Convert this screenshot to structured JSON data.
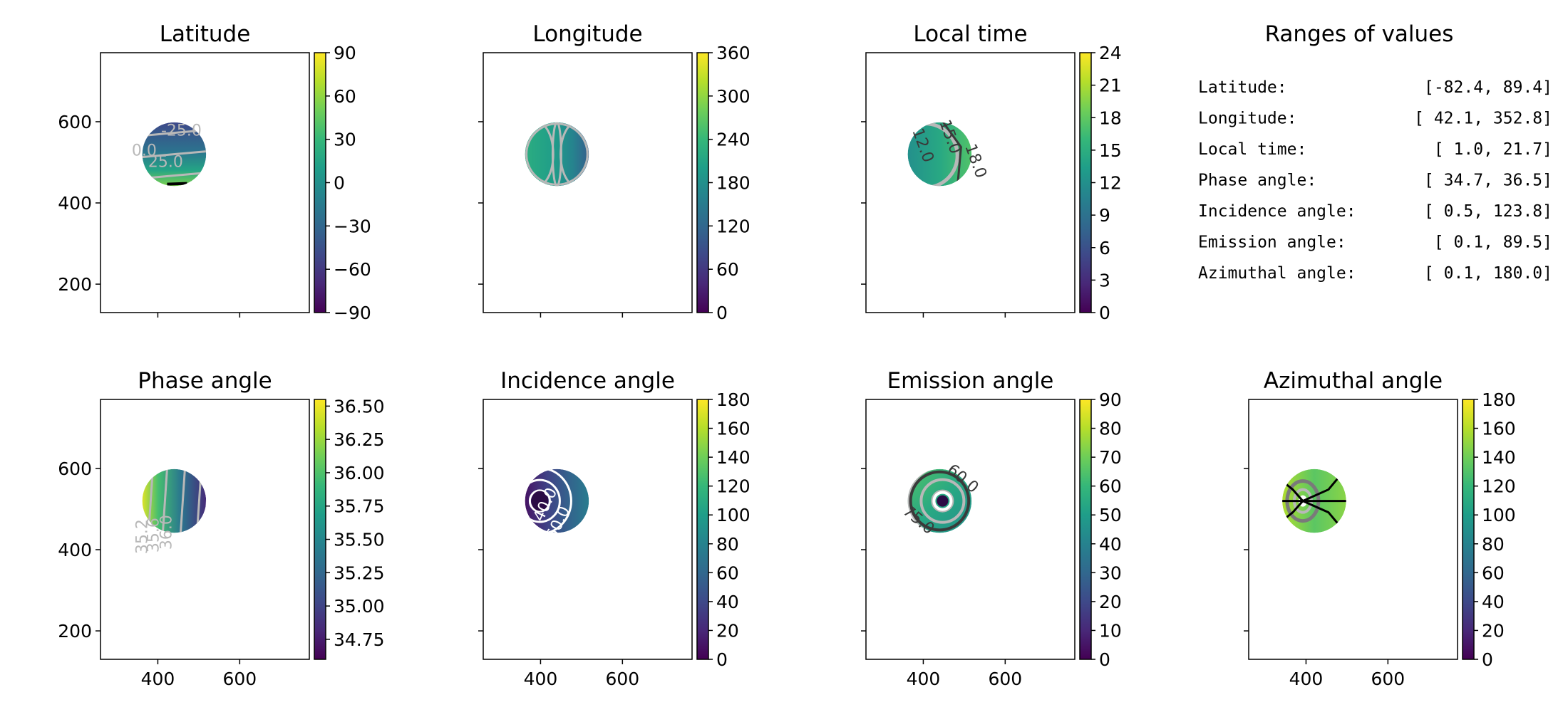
{
  "chart_data": [
    {
      "type": "heatmap",
      "title": "Latitude",
      "xlim": [
        260,
        770
      ],
      "ylim": [
        130,
        770
      ],
      "xticks": [
        400,
        600
      ],
      "yticks": [
        200,
        400,
        600
      ],
      "show_xticklabels": false,
      "show_yticklabels": true,
      "disc": {
        "cx": 440,
        "cy": 520,
        "r": 78
      },
      "color_variable": "latitude",
      "colorbar": {
        "range": [
          -90,
          90
        ],
        "ticks": [
          "90",
          "60",
          "30",
          "0",
          "−30",
          "−60",
          "−90"
        ],
        "tick_values": [
          90,
          60,
          30,
          0,
          -30,
          -60,
          -90
        ]
      },
      "contour_labels": [
        "-25.0",
        "0.0",
        "25.0"
      ]
    },
    {
      "type": "heatmap",
      "title": "Longitude",
      "xlim": [
        260,
        770
      ],
      "ylim": [
        130,
        770
      ],
      "xticks": [
        400,
        600
      ],
      "yticks": [
        200,
        400,
        600
      ],
      "show_xticklabels": false,
      "show_yticklabels": false,
      "disc": {
        "cx": 440,
        "cy": 520,
        "r": 78
      },
      "color_variable": "longitude",
      "colorbar": {
        "range": [
          0,
          360
        ],
        "ticks": [
          "360",
          "300",
          "240",
          "180",
          "120",
          "60",
          "0"
        ],
        "tick_values": [
          360,
          300,
          240,
          180,
          120,
          60,
          0
        ]
      },
      "contour_labels": []
    },
    {
      "type": "heatmap",
      "title": "Local time",
      "xlim": [
        260,
        770
      ],
      "ylim": [
        130,
        770
      ],
      "xticks": [
        400,
        600
      ],
      "yticks": [
        200,
        400,
        600
      ],
      "show_xticklabels": false,
      "show_yticklabels": false,
      "disc": {
        "cx": 440,
        "cy": 520,
        "r": 78
      },
      "color_variable": "local_time",
      "colorbar": {
        "range": [
          0,
          24
        ],
        "ticks": [
          "24",
          "21",
          "18",
          "15",
          "12",
          "9",
          "6",
          "3",
          "0"
        ],
        "tick_values": [
          24,
          21,
          18,
          15,
          12,
          9,
          6,
          3,
          0
        ]
      },
      "contour_labels": [
        "12.0",
        "15.0",
        "18.0"
      ]
    },
    {
      "type": "heatmap",
      "title": "Phase angle",
      "xlim": [
        260,
        770
      ],
      "ylim": [
        130,
        770
      ],
      "xticks": [
        400,
        600
      ],
      "yticks": [
        200,
        400,
        600
      ],
      "show_xticklabels": true,
      "show_yticklabels": true,
      "disc": {
        "cx": 440,
        "cy": 520,
        "r": 78
      },
      "color_variable": "phase",
      "colorbar": {
        "range": [
          34.6,
          36.55
        ],
        "ticks": [
          "36.50",
          "36.25",
          "36.00",
          "35.75",
          "35.50",
          "35.25",
          "35.00",
          "34.75"
        ],
        "tick_values": [
          36.5,
          36.25,
          36.0,
          35.75,
          35.5,
          35.25,
          35.0,
          34.75
        ]
      },
      "contour_labels": [
        "35.2",
        "35.6",
        "36.0"
      ]
    },
    {
      "type": "heatmap",
      "title": "Incidence angle",
      "xlim": [
        260,
        770
      ],
      "ylim": [
        130,
        770
      ],
      "xticks": [
        400,
        600
      ],
      "yticks": [
        200,
        400,
        600
      ],
      "show_xticklabels": true,
      "show_yticklabels": false,
      "disc": {
        "cx": 440,
        "cy": 520,
        "r": 78
      },
      "color_variable": "incidence",
      "colorbar": {
        "range": [
          0,
          180
        ],
        "ticks": [
          "180",
          "160",
          "140",
          "120",
          "100",
          "80",
          "60",
          "40",
          "20",
          "0"
        ],
        "tick_values": [
          180,
          160,
          140,
          120,
          100,
          80,
          60,
          40,
          20,
          0
        ]
      },
      "contour_labels": [
        "40.0",
        "60.0"
      ]
    },
    {
      "type": "heatmap",
      "title": "Emission angle",
      "xlim": [
        260,
        770
      ],
      "ylim": [
        130,
        770
      ],
      "xticks": [
        400,
        600
      ],
      "yticks": [
        200,
        400,
        600
      ],
      "show_xticklabels": true,
      "show_yticklabels": false,
      "disc": {
        "cx": 440,
        "cy": 520,
        "r": 78
      },
      "color_variable": "emission",
      "colorbar": {
        "range": [
          0,
          90
        ],
        "ticks": [
          "90",
          "80",
          "70",
          "60",
          "50",
          "40",
          "30",
          "20",
          "10",
          "0"
        ],
        "tick_values": [
          90,
          80,
          70,
          60,
          50,
          40,
          30,
          20,
          10,
          0
        ]
      },
      "contour_labels": [
        "60.0",
        "75.0"
      ]
    },
    {
      "type": "heatmap",
      "title": "Azimuthal angle",
      "xlim": [
        260,
        770
      ],
      "ylim": [
        130,
        770
      ],
      "xticks": [
        400,
        600
      ],
      "yticks": [
        200,
        400,
        600
      ],
      "show_xticklabels": true,
      "show_yticklabels": false,
      "disc": {
        "cx": 420,
        "cy": 520,
        "r": 78
      },
      "color_variable": "azimuth",
      "colorbar": {
        "range": [
          0,
          180
        ],
        "ticks": [
          "180",
          "160",
          "140",
          "120",
          "100",
          "80",
          "60",
          "40",
          "20",
          "0"
        ],
        "tick_values": [
          180,
          160,
          140,
          120,
          100,
          80,
          60,
          40,
          20,
          0
        ]
      },
      "contour_labels": []
    },
    {
      "type": "table",
      "title": "Ranges of values",
      "rows": [
        {
          "label": "Latitude:",
          "range": "[-82.4,  89.4]"
        },
        {
          "label": "Longitude:",
          "range": "[ 42.1, 352.8]"
        },
        {
          "label": "Local time:",
          "range": "[  1.0,  21.7]"
        },
        {
          "label": "Phase angle:",
          "range": "[ 34.7,  36.5]"
        },
        {
          "label": "Incidence angle:",
          "range": "[  0.5, 123.8]"
        },
        {
          "label": "Emission angle:",
          "range": "[  0.1,  89.5]"
        },
        {
          "label": "Azimuthal angle:",
          "range": "[  0.1, 180.0]"
        }
      ]
    }
  ],
  "colormap": "viridis",
  "colors": {
    "contour_light": "#b8b8b8",
    "contour_dark": "#3a3a3a",
    "contour_white": "#ffffff"
  }
}
